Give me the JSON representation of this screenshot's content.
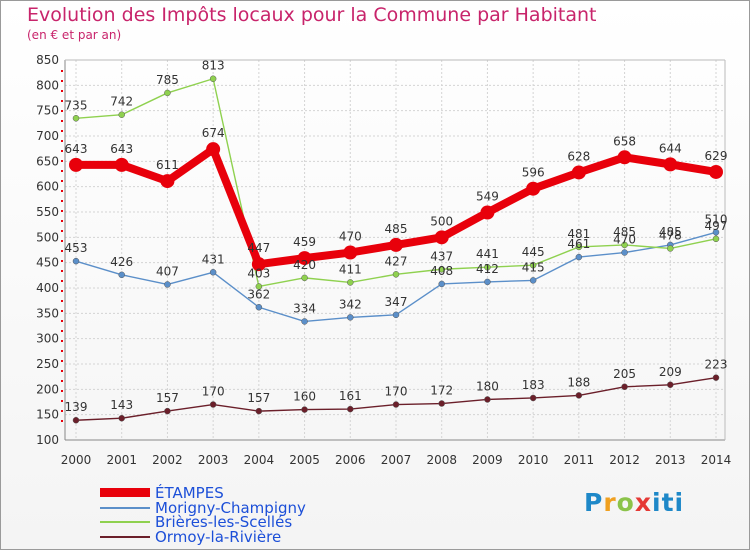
{
  "title": "Evolution des Impôts locaux pour la Commune par Habitant",
  "subtitle": "(en € et par an)",
  "logo": {
    "text": "Proxiti"
  },
  "chart_data": {
    "type": "line",
    "title": "Evolution des Impôts locaux pour la Commune par Habitant",
    "subtitle": "(en € et par an)",
    "categories": [
      "2000",
      "2001",
      "2002",
      "2003",
      "2004",
      "2005",
      "2006",
      "2007",
      "2008",
      "2009",
      "2010",
      "2011",
      "2012",
      "2013",
      "2014"
    ],
    "ylim": [
      100,
      850
    ],
    "yticks": [
      100,
      150,
      200,
      250,
      300,
      350,
      400,
      450,
      500,
      550,
      600,
      650,
      700,
      750,
      800,
      850
    ],
    "grid": true,
    "series": [
      {
        "name": "ÉTAMPES",
        "color": "#e8000b",
        "values": [
          643,
          643,
          611,
          674,
          447,
          459,
          470,
          485,
          500,
          549,
          596,
          628,
          658,
          644,
          629
        ],
        "labels": [
          "643",
          "643",
          "611",
          "674",
          "447",
          "459",
          "470",
          "485",
          "500",
          "549",
          "596",
          "628",
          "658",
          "644",
          "629"
        ]
      },
      {
        "name": "Morigny-Champigny",
        "color": "#5b8fc9",
        "values": [
          453,
          426,
          407,
          431,
          362,
          334,
          342,
          347,
          408,
          412,
          415,
          461,
          470,
          485,
          510
        ],
        "labels": [
          "453",
          "426",
          "407",
          "431",
          "362",
          "334",
          "342",
          "347",
          "408",
          "412",
          "415",
          "461",
          "470",
          "485",
          "510"
        ]
      },
      {
        "name": "Brières-les-Scellés",
        "color": "#8fd14f",
        "values": [
          735,
          742,
          785,
          813,
          403,
          420,
          411,
          427,
          437,
          441,
          445,
          481,
          485,
          478,
          497
        ],
        "labels": [
          "735",
          "742",
          "785",
          "813",
          "403",
          "420",
          "411",
          "427",
          "437",
          "441",
          "445",
          "481",
          "485",
          "478",
          "497"
        ]
      },
      {
        "name": "Ormoy-la-Rivière",
        "color": "#6b1f2a",
        "values": [
          139,
          143,
          157,
          170,
          157,
          160,
          161,
          170,
          172,
          180,
          183,
          188,
          205,
          209,
          223
        ],
        "labels": [
          "139",
          "143",
          "157",
          "170",
          "157",
          "160",
          "161",
          "170",
          "172",
          "180",
          "183",
          "188",
          "205",
          "209",
          "223"
        ]
      }
    ]
  }
}
